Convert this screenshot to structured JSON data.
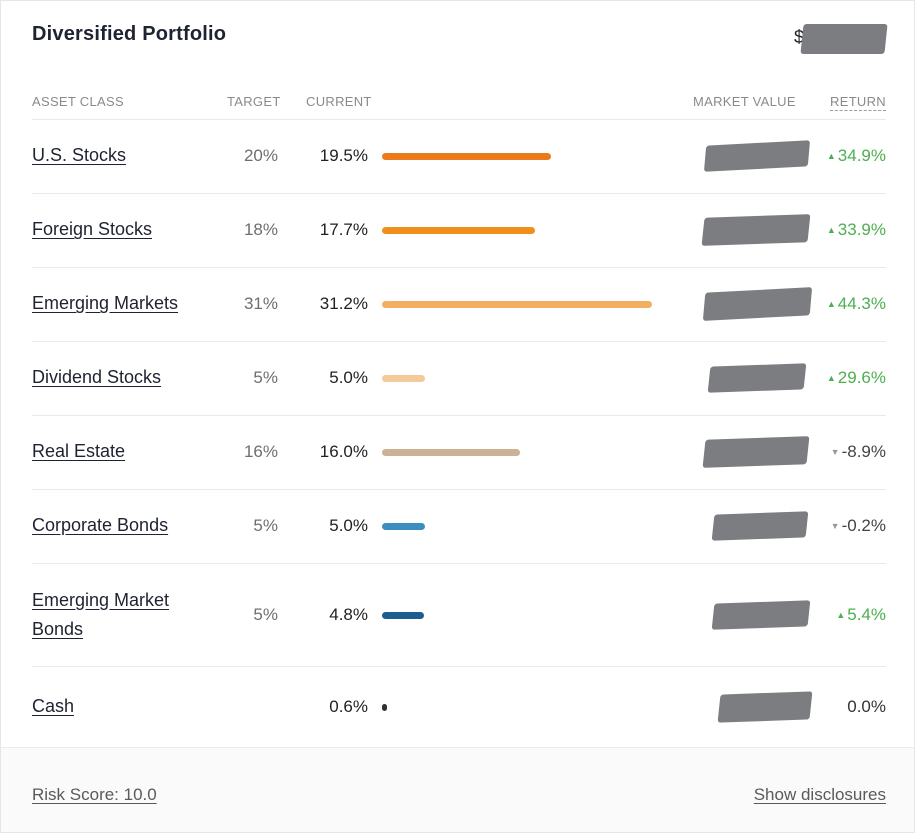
{
  "header": {
    "title": "Diversified Portfolio",
    "total_prefix": "$"
  },
  "columns": {
    "asset_class": "ASSET CLASS",
    "target": "TARGET",
    "current": "CURRENT",
    "market_value": "MARKET VALUE",
    "return": "RETURN"
  },
  "rows": [
    {
      "name_line1": "U.S. Stocks",
      "name_line2": "",
      "target": "20%",
      "current": "19.5%",
      "current_pct": 19.5,
      "bar_color": "#ec7a1c",
      "return": "34.9%",
      "direction": "up"
    },
    {
      "name_line1": "Foreign Stocks",
      "name_line2": "",
      "target": "18%",
      "current": "17.7%",
      "current_pct": 17.7,
      "bar_color": "#f0901c",
      "return": "33.9%",
      "direction": "up"
    },
    {
      "name_line1": "Emerging Markets",
      "name_line2": "",
      "target": "31%",
      "current": "31.2%",
      "current_pct": 31.2,
      "bar_color": "#f3ae62",
      "return": "44.3%",
      "direction": "up"
    },
    {
      "name_line1": "Dividend Stocks",
      "name_line2": "",
      "target": "5%",
      "current": "5.0%",
      "current_pct": 5.0,
      "bar_color": "#f6c99a",
      "return": "29.6%",
      "direction": "up"
    },
    {
      "name_line1": "Real Estate",
      "name_line2": "",
      "target": "16%",
      "current": "16.0%",
      "current_pct": 16.0,
      "bar_color": "#cdb197",
      "return": "-8.9%",
      "direction": "down"
    },
    {
      "name_line1": "Corporate Bonds",
      "name_line2": "",
      "target": "5%",
      "current": "5.0%",
      "current_pct": 5.0,
      "bar_color": "#3a8fc0",
      "return": "-0.2%",
      "direction": "down"
    },
    {
      "name_line1": "Emerging Market",
      "name_line2": "Bonds",
      "target": "5%",
      "current": "4.8%",
      "current_pct": 4.8,
      "bar_color": "#1b5e8f",
      "return": "5.4%",
      "direction": "up"
    },
    {
      "name_line1": "Cash",
      "name_line2": "",
      "target": "",
      "current": "0.6%",
      "current_pct": 0.6,
      "bar_color": "#333333",
      "return": "0.0%",
      "direction": "none"
    }
  ],
  "footer": {
    "risk_score": "Risk Score: 10.0",
    "show_disclosures": "Show disclosures"
  },
  "colors": {
    "return_up": "#4caf50",
    "redaction": "#7b7d80"
  }
}
